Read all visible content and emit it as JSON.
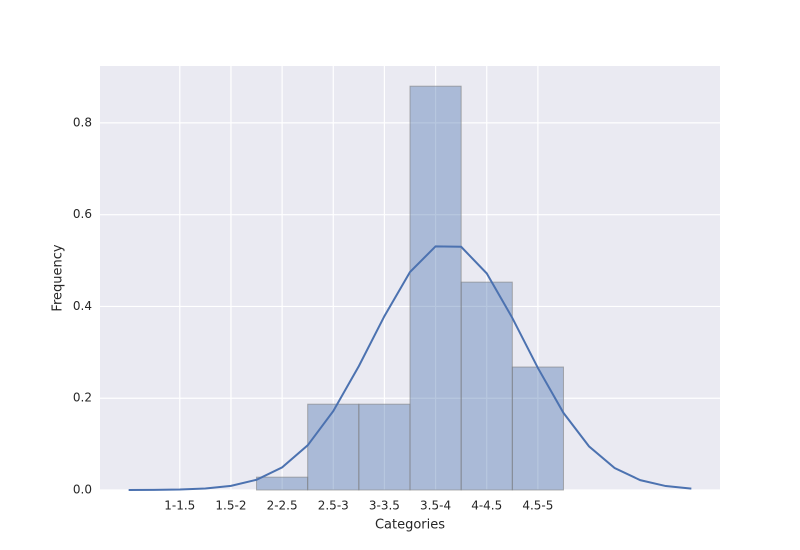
{
  "chart_data": {
    "type": "histogram",
    "xlabel": "Categories",
    "ylabel": "Frequency",
    "bins": [
      2,
      2.5,
      3,
      3.5,
      4,
      4.5,
      5
    ],
    "values": [
      0.028,
      0.187,
      0.187,
      0.88,
      0.453,
      0.268
    ],
    "color": "#4c72b0",
    "curve": {
      "color": "#4c72b0",
      "x": [
        0.75,
        1.0,
        1.25,
        1.5,
        1.75,
        2.0,
        2.25,
        2.5,
        2.75,
        3.0,
        3.25,
        3.5,
        3.75,
        4.0,
        4.25,
        4.5,
        4.75,
        5.0,
        5.25,
        5.5,
        5.75,
        6.0,
        6.25
      ],
      "values": [
        0.0001,
        0.0003,
        0.001,
        0.0032,
        0.009,
        0.0223,
        0.0493,
        0.0974,
        0.172,
        0.27,
        0.379,
        0.475,
        0.531,
        0.53,
        0.472,
        0.375,
        0.266,
        0.168,
        0.095,
        0.0478,
        0.0215,
        0.0086,
        0.0031
      ]
    },
    "xlim": [
      0.47,
      6.53
    ],
    "ylim": [
      0,
      0.924
    ],
    "xticks": [
      {
        "value": 1.25,
        "label": "1-1.5"
      },
      {
        "value": 1.75,
        "label": "1.5-2"
      },
      {
        "value": 2.25,
        "label": "2-2.5"
      },
      {
        "value": 2.75,
        "label": "2.5-3"
      },
      {
        "value": 3.25,
        "label": "3-3.5"
      },
      {
        "value": 3.75,
        "label": "3.5-4"
      },
      {
        "value": 4.25,
        "label": "4-4.5"
      },
      {
        "value": 4.75,
        "label": "4.5-5"
      }
    ],
    "yticks": [
      {
        "value": 0,
        "label": "0.0"
      },
      0.2,
      0.4,
      0.6,
      0.8
    ],
    "grid": true
  }
}
